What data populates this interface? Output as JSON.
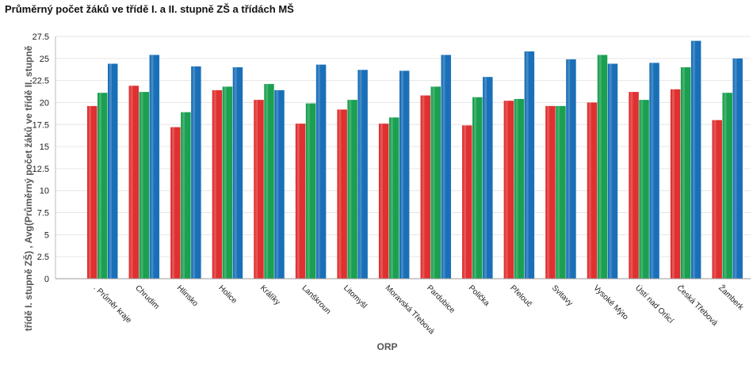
{
  "chart_data": {
    "type": "bar",
    "title": "Průměrný počet žáků ve třídě I. a II. stupně ZŠ a třídách MŠ",
    "xlabel": "ORP",
    "ylabel": "třídě I. stupně ZŠ) , Avg(Průměrný počet žáků ve třídě II. stupně",
    "ylim": [
      0,
      27.5
    ],
    "yticks": [
      "0",
      "2.5",
      "5",
      "7.5",
      "10",
      "12.5",
      "15",
      "17.5",
      "20",
      "22.5",
      "25",
      "27.5"
    ],
    "grid": true,
    "legend": "none",
    "categories": [
      ". Průměr kraje",
      "Chrudim",
      "Hlinsko",
      "Holice",
      "Králíky",
      "Lanškroun",
      "Litomyšl",
      "Moravská Třebová",
      "Pardubice",
      "Polička",
      "Přelouč",
      "Svitavy",
      "Vysoké Mýto",
      "Ústí nad Orlicí",
      "Česká Třebová",
      "Žamberk"
    ],
    "series": [
      {
        "color": "#e03030",
        "values": [
          19.6,
          21.9,
          17.2,
          21.4,
          20.3,
          17.6,
          19.2,
          17.6,
          20.8,
          17.4,
          20.2,
          19.6,
          20.0,
          21.2,
          21.5,
          18.0
        ]
      },
      {
        "color": "#1aa050",
        "values": [
          21.1,
          21.2,
          18.9,
          21.8,
          22.1,
          19.9,
          20.3,
          18.3,
          21.8,
          20.6,
          20.4,
          19.6,
          25.4,
          20.3,
          24.0,
          21.1
        ]
      },
      {
        "color": "#1a70b8",
        "values": [
          24.4,
          25.4,
          24.1,
          24.0,
          21.4,
          24.3,
          23.7,
          23.6,
          25.4,
          22.9,
          25.8,
          24.9,
          24.4,
          24.5,
          27.0,
          25.0
        ]
      }
    ]
  }
}
